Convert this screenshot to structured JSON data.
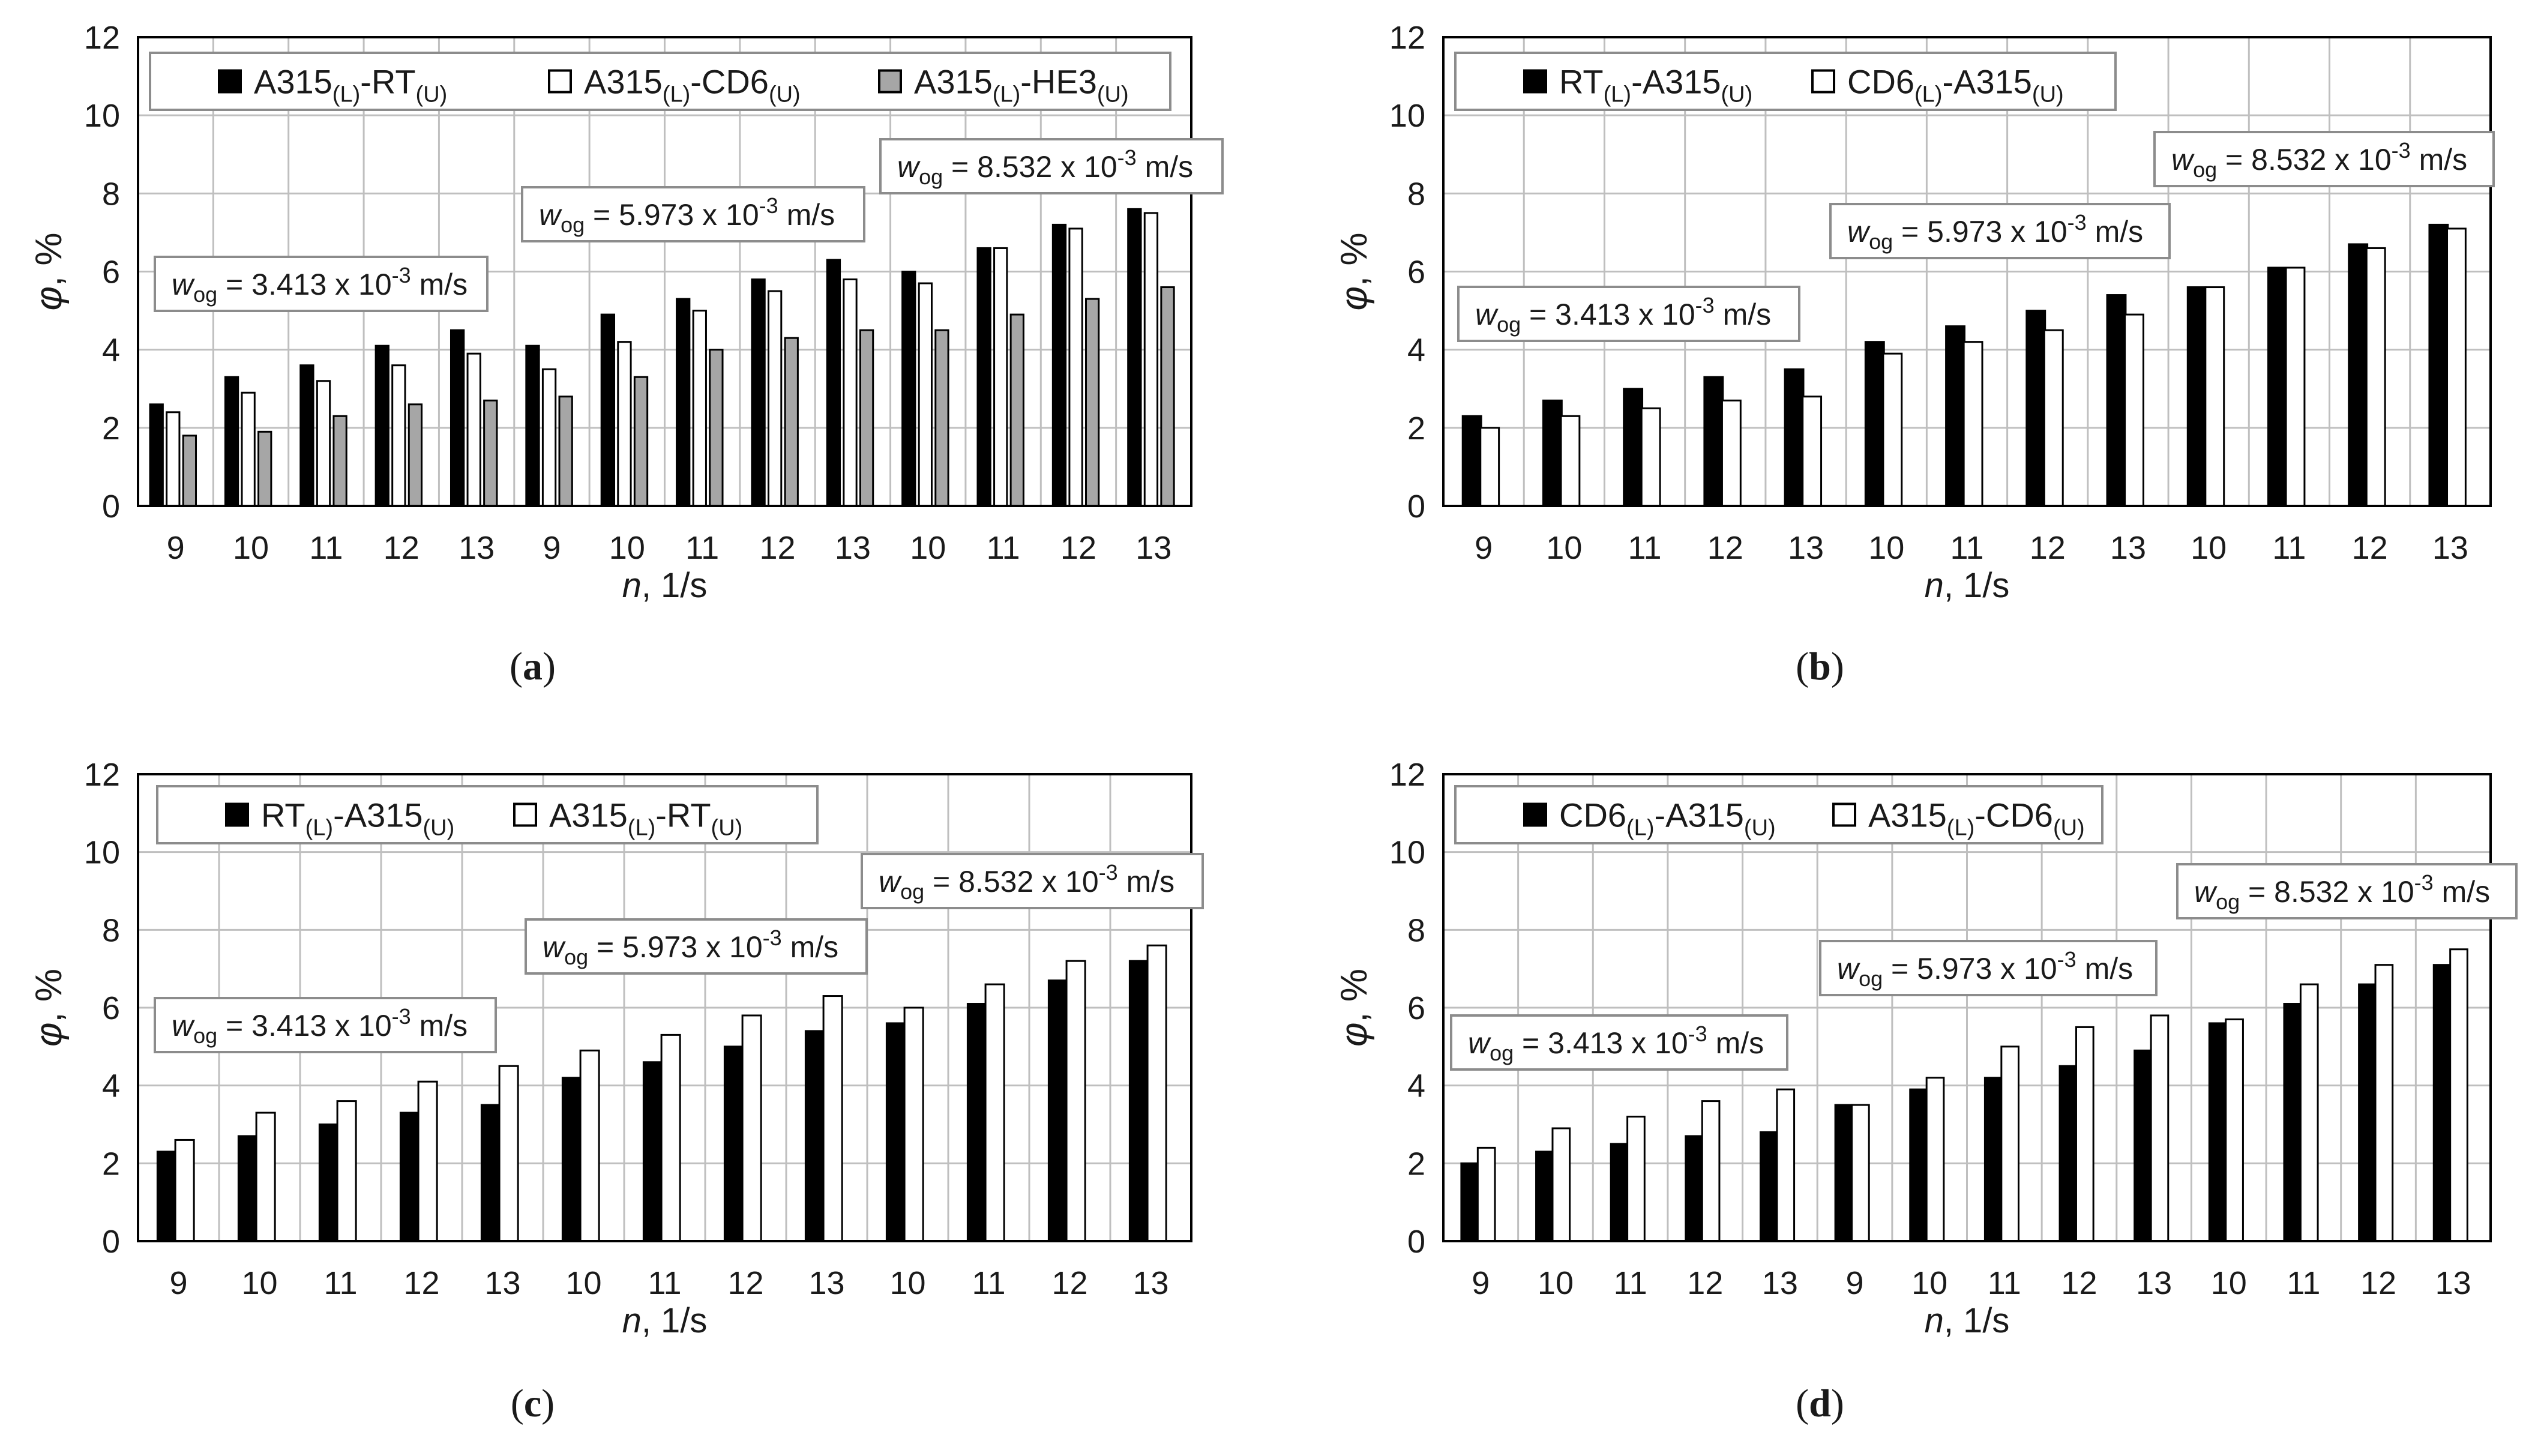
{
  "colors": {
    "series_black": "#000000",
    "series_white": "#ffffff",
    "series_gray": "#a6a6a6",
    "grid": "#bfbfbf",
    "frame": "#000000",
    "box_border": "#8c8c8c"
  },
  "chart_data": [
    {
      "panel_label": "(a)",
      "type": "bar",
      "xlabel": "n, 1/s",
      "ylabel": "φ, %",
      "ylim": [
        0,
        12
      ],
      "yticks": [
        "0",
        "2",
        "4",
        "6",
        "8",
        "10",
        "12"
      ],
      "categories": [
        "9",
        "10",
        "11",
        "12",
        "13",
        "9",
        "10",
        "11",
        "12",
        "13",
        "10",
        "11",
        "12",
        "13"
      ],
      "grid": true,
      "legend_position": "top",
      "series": [
        {
          "name": "A315(L)-RT(U)",
          "legend": {
            "base1": "A315",
            "sub1": "(L)",
            "base2": "-RT",
            "sub2": "(U)"
          },
          "color": "#000000",
          "values": [
            2.6,
            3.3,
            3.6,
            4.1,
            4.5,
            4.1,
            4.9,
            5.3,
            5.8,
            6.3,
            6.0,
            6.6,
            7.2,
            7.6
          ]
        },
        {
          "name": "A315(L)-CD6(U)",
          "legend": {
            "base1": "A315",
            "sub1": "(L)",
            "base2": "-CD6",
            "sub2": "(U)"
          },
          "color": "#ffffff",
          "values": [
            2.4,
            2.9,
            3.2,
            3.6,
            3.9,
            3.5,
            4.2,
            5.0,
            5.5,
            5.8,
            5.7,
            6.6,
            7.1,
            7.5
          ]
        },
        {
          "name": "A315(L)-HE3(U)",
          "legend": {
            "base1": "A315",
            "sub1": "(L)",
            "base2": "-HE3",
            "sub2": "(U)"
          },
          "color": "#a6a6a6",
          "values": [
            1.8,
            1.9,
            2.3,
            2.6,
            2.7,
            2.8,
            3.3,
            4.0,
            4.3,
            4.5,
            4.5,
            4.9,
            5.3,
            5.6
          ]
        }
      ],
      "annotations": [
        {
          "text_pre": "w",
          "text_sub": "og",
          "text_mid": " = 3.413 x 10",
          "text_sup": "-3",
          "text_post": " m/s"
        },
        {
          "text_pre": "w",
          "text_sub": "og",
          "text_mid": " = 5.973 x 10",
          "text_sup": "-3",
          "text_post": " m/s"
        },
        {
          "text_pre": "w",
          "text_sub": "og",
          "text_mid": " = 8.532 x 10",
          "text_sup": "-3",
          "text_post": " m/s"
        }
      ]
    },
    {
      "panel_label": "(b)",
      "type": "bar",
      "xlabel": "n, 1/s",
      "ylabel": "φ, %",
      "ylim": [
        0,
        12
      ],
      "yticks": [
        "0",
        "2",
        "4",
        "6",
        "8",
        "10",
        "12"
      ],
      "categories": [
        "9",
        "10",
        "11",
        "12",
        "13",
        "10",
        "11",
        "12",
        "13",
        "10",
        "11",
        "12",
        "13"
      ],
      "grid": true,
      "legend_position": "top",
      "series": [
        {
          "name": "RT(L)-A315(U)",
          "legend": {
            "base1": "RT",
            "sub1": "(L)",
            "base2": "-A315",
            "sub2": "(U)"
          },
          "color": "#000000",
          "values": [
            2.3,
            2.7,
            3.0,
            3.3,
            3.5,
            4.2,
            4.6,
            5.0,
            5.4,
            5.6,
            6.1,
            6.7,
            7.2
          ]
        },
        {
          "name": "CD6(L)-A315(U)",
          "legend": {
            "base1": "CD6",
            "sub1": "(L)",
            "base2": "-A315",
            "sub2": "(U)"
          },
          "color": "#ffffff",
          "values": [
            2.0,
            2.3,
            2.5,
            2.7,
            2.8,
            3.9,
            4.2,
            4.5,
            4.9,
            5.6,
            6.1,
            6.6,
            7.1
          ]
        }
      ],
      "annotations": [
        {
          "text_pre": "w",
          "text_sub": "og",
          "text_mid": " = 3.413 x 10",
          "text_sup": "-3",
          "text_post": " m/s"
        },
        {
          "text_pre": "w",
          "text_sub": "og",
          "text_mid": " = 5.973 x 10",
          "text_sup": "-3",
          "text_post": " m/s"
        },
        {
          "text_pre": "w",
          "text_sub": "og",
          "text_mid": " = 8.532 x 10",
          "text_sup": "-3",
          "text_post": " m/s"
        }
      ]
    },
    {
      "panel_label": "(c)",
      "type": "bar",
      "xlabel": "n, 1/s",
      "ylabel": "φ, %",
      "ylim": [
        0,
        12
      ],
      "yticks": [
        "0",
        "2",
        "4",
        "6",
        "8",
        "10",
        "12"
      ],
      "categories": [
        "9",
        "10",
        "11",
        "12",
        "13",
        "10",
        "11",
        "12",
        "13",
        "10",
        "11",
        "12",
        "13"
      ],
      "grid": true,
      "legend_position": "top",
      "series": [
        {
          "name": "RT(L)-A315(U)",
          "legend": {
            "base1": "RT",
            "sub1": "(L)",
            "base2": "-A315",
            "sub2": "(U)"
          },
          "color": "#000000",
          "values": [
            2.3,
            2.7,
            3.0,
            3.3,
            3.5,
            4.2,
            4.6,
            5.0,
            5.4,
            5.6,
            6.1,
            6.7,
            7.2
          ]
        },
        {
          "name": "A315(L)-RT(U)",
          "legend": {
            "base1": "A315",
            "sub1": "(L)",
            "base2": "-RT",
            "sub2": "(U)"
          },
          "color": "#ffffff",
          "values": [
            2.6,
            3.3,
            3.6,
            4.1,
            4.5,
            4.9,
            5.3,
            5.8,
            6.3,
            6.0,
            6.6,
            7.2,
            7.6
          ]
        }
      ],
      "annotations": [
        {
          "text_pre": "w",
          "text_sub": "og",
          "text_mid": " = 3.413 x 10",
          "text_sup": "-3",
          "text_post": " m/s"
        },
        {
          "text_pre": "w",
          "text_sub": "og",
          "text_mid": " = 5.973 x 10",
          "text_sup": "-3",
          "text_post": " m/s"
        },
        {
          "text_pre": "w",
          "text_sub": "og",
          "text_mid": " = 8.532 x 10",
          "text_sup": "-3",
          "text_post": " m/s"
        }
      ]
    },
    {
      "panel_label": "(d)",
      "type": "bar",
      "xlabel": "n, 1/s",
      "ylabel": "φ, %",
      "ylim": [
        0,
        12
      ],
      "yticks": [
        "0",
        "2",
        "4",
        "6",
        "8",
        "10",
        "12"
      ],
      "categories": [
        "9",
        "10",
        "11",
        "12",
        "13",
        "9",
        "10",
        "11",
        "12",
        "13",
        "10",
        "11",
        "12",
        "13"
      ],
      "grid": true,
      "legend_position": "top",
      "series": [
        {
          "name": "CD6(L)-A315(U)",
          "legend": {
            "base1": "CD6",
            "sub1": "(L)",
            "base2": "-A315",
            "sub2": "(U)"
          },
          "color": "#000000",
          "values": [
            2.0,
            2.3,
            2.5,
            2.7,
            2.8,
            3.5,
            3.9,
            4.2,
            4.5,
            4.9,
            5.6,
            6.1,
            6.6,
            7.1
          ]
        },
        {
          "name": "A315(L)-CD6(U)",
          "legend": {
            "base1": "A315",
            "sub1": "(L)",
            "base2": "-CD6",
            "sub2": "(U)"
          },
          "color": "#ffffff",
          "values": [
            2.4,
            2.9,
            3.2,
            3.6,
            3.9,
            3.5,
            4.2,
            5.0,
            5.5,
            5.8,
            5.7,
            6.6,
            7.1,
            7.5
          ]
        }
      ],
      "annotations": [
        {
          "text_pre": "w",
          "text_sub": "og",
          "text_mid": " = 3.413 x 10",
          "text_sup": "-3",
          "text_post": " m/s"
        },
        {
          "text_pre": "w",
          "text_sub": "og",
          "text_mid": " = 5.973 x 10",
          "text_sup": "-3",
          "text_post": " m/s"
        },
        {
          "text_pre": "w",
          "text_sub": "og",
          "text_mid": " = 8.532 x 10",
          "text_sup": "-3",
          "text_post": " m/s"
        }
      ]
    }
  ]
}
